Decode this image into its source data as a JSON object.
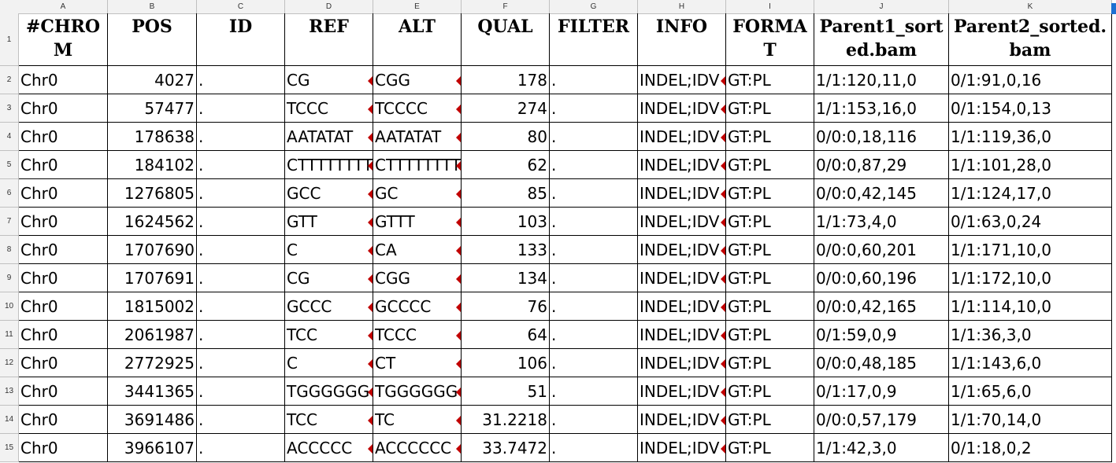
{
  "sheet": {
    "columns": [
      "A",
      "B",
      "C",
      "D",
      "E",
      "F",
      "G",
      "H",
      "I",
      "J",
      "K"
    ],
    "headers": [
      "#CHROM",
      "POS",
      "ID",
      "REF",
      "ALT",
      "QUAL",
      "FILTER",
      "INFO",
      "FORMAT",
      "Parent1_sorted.bam",
      "Parent2_sorted.bam"
    ],
    "row_numbers": [
      "1",
      "2",
      "3",
      "4",
      "5",
      "6",
      "7",
      "8",
      "9",
      "10",
      "11",
      "12",
      "13",
      "14",
      "15"
    ],
    "rows": [
      [
        "Chr0",
        "4027",
        ".",
        "CG",
        "CGG",
        "178",
        ".",
        "INDEL;IDV",
        "GT:PL",
        "1/1:120,11,0",
        "0/1:91,0,16"
      ],
      [
        "Chr0",
        "57477",
        ".",
        "TCCC",
        "TCCCC",
        "274",
        ".",
        "INDEL;IDV",
        "GT:PL",
        "1/1:153,16,0",
        "0/1:154,0,13"
      ],
      [
        "Chr0",
        "178638",
        ".",
        "AATATAT",
        "AATATAT",
        "80",
        ".",
        "INDEL;IDV",
        "GT:PL",
        "0/0:0,18,116",
        "1/1:119,36,0"
      ],
      [
        "Chr0",
        "184102",
        ".",
        "CTTTTTTTT",
        "CTTTTTTTT",
        "62",
        ".",
        "INDEL;IDV",
        "GT:PL",
        "0/0:0,87,29",
        "1/1:101,28,0"
      ],
      [
        "Chr0",
        "1276805",
        ".",
        "GCC",
        "GC",
        "85",
        ".",
        "INDEL;IDV",
        "GT:PL",
        "0/0:0,42,145",
        "1/1:124,17,0"
      ],
      [
        "Chr0",
        "1624562",
        ".",
        "GTT",
        "GTTT",
        "103",
        ".",
        "INDEL;IDV",
        "GT:PL",
        "1/1:73,4,0",
        "0/1:63,0,24"
      ],
      [
        "Chr0",
        "1707690",
        ".",
        "C",
        "CA",
        "133",
        ".",
        "INDEL;IDV",
        "GT:PL",
        "0/0:0,60,201",
        "1/1:171,10,0"
      ],
      [
        "Chr0",
        "1707691",
        ".",
        "CG",
        "CGG",
        "134",
        ".",
        "INDEL;IDV",
        "GT:PL",
        "0/0:0,60,196",
        "1/1:172,10,0"
      ],
      [
        "Chr0",
        "1815002",
        ".",
        "GCCC",
        "GCCCC",
        "76",
        ".",
        "INDEL;IDV",
        "GT:PL",
        "0/0:0,42,165",
        "1/1:114,10,0"
      ],
      [
        "Chr0",
        "2061987",
        ".",
        "TCC",
        "TCCC",
        "64",
        ".",
        "INDEL;IDV",
        "GT:PL",
        "0/1:59,0,9",
        "1/1:36,3,0"
      ],
      [
        "Chr0",
        "2772925",
        ".",
        "C",
        "CT",
        "106",
        ".",
        "INDEL;IDV",
        "GT:PL",
        "0/0:0,48,185",
        "1/1:143,6,0"
      ],
      [
        "Chr0",
        "3441365",
        ".",
        "TGGGGGG",
        "TGGGGGG",
        "51",
        ".",
        "INDEL;IDV",
        "GT:PL",
        "0/1:17,0,9",
        "1/1:65,6,0"
      ],
      [
        "Chr0",
        "3691486",
        ".",
        "TCC",
        "TC",
        "31.2218",
        ".",
        "INDEL;IDV",
        "GT:PL",
        "0/0:0,57,179",
        "1/1:70,14,0"
      ],
      [
        "Chr0",
        "3966107",
        ".",
        "ACCCCC",
        "ACCCCCC",
        "33.7472",
        ".",
        "INDEL;IDV",
        "GT:PL",
        "1/1:42,3,0",
        "0/1:18,0,2"
      ]
    ],
    "truncated_cols": [
      3,
      4,
      7
    ]
  }
}
